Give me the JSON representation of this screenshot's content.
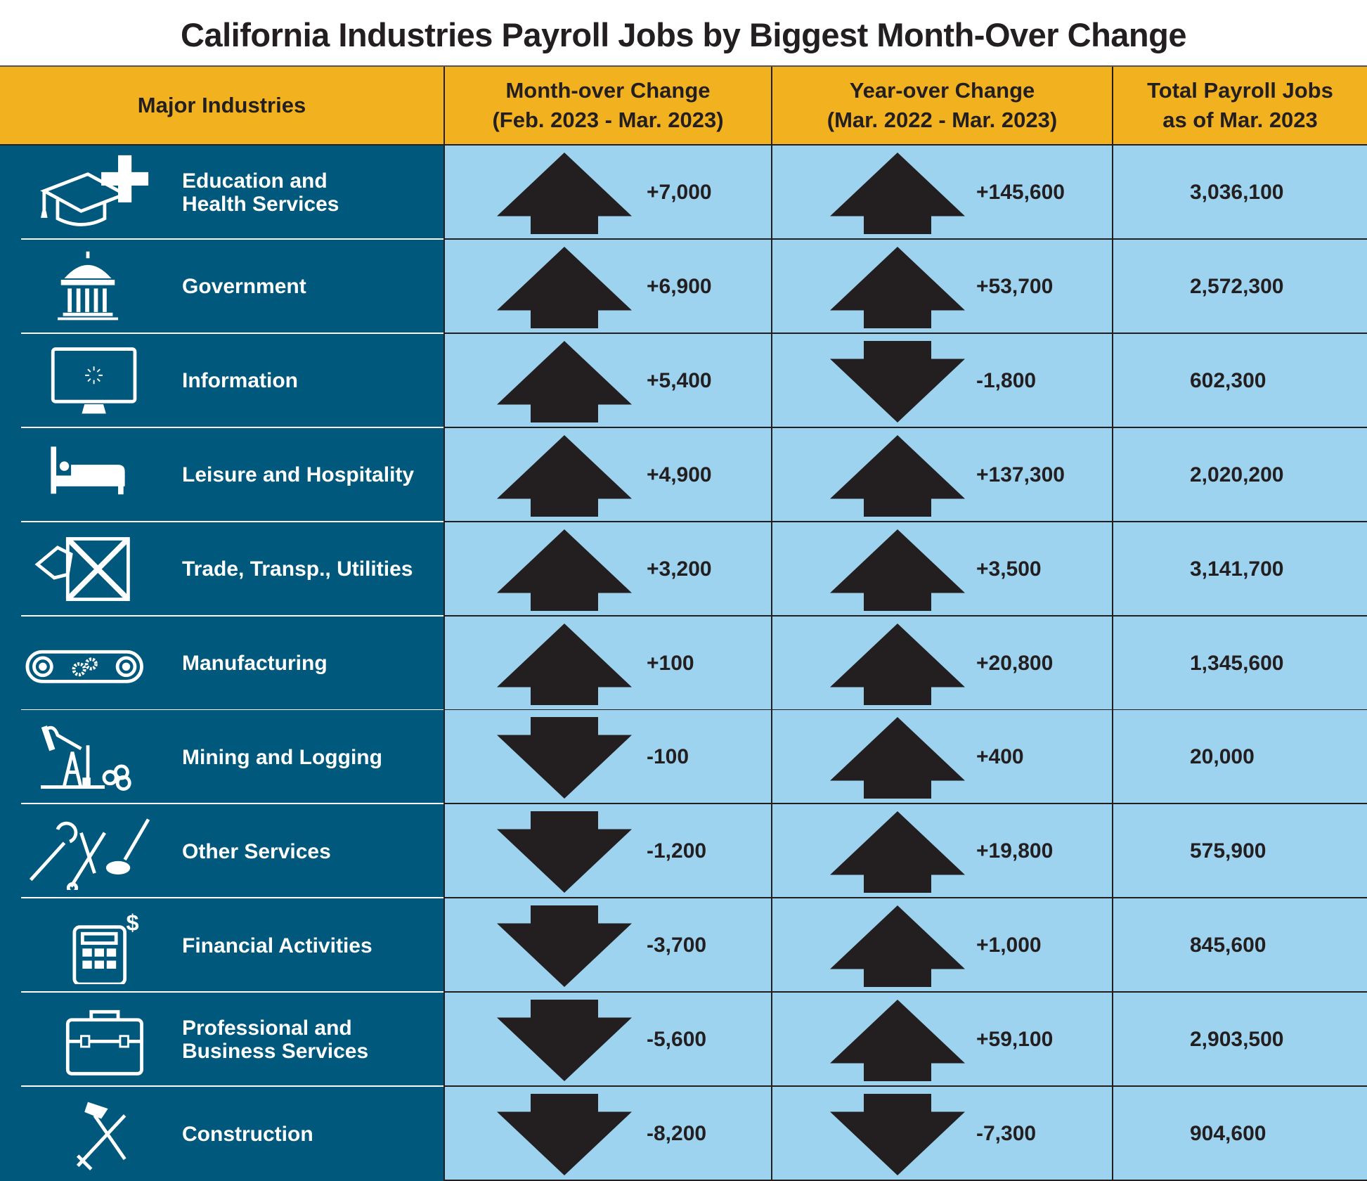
{
  "title": "California Industries Payroll Jobs by Biggest Month-Over Change",
  "headers": {
    "industry": "Major Industries",
    "month_over": "Month-over Change\n(Feb. 2023 - Mar. 2023)",
    "year_over": "Year-over Change\n(Mar. 2022 - Mar. 2023)",
    "total": "Total Payroll Jobs\nas of Mar. 2023"
  },
  "colors": {
    "header_bg": "#f2b11f",
    "industry_bg": "#00587c",
    "cell_bg": "#9dd3ef",
    "arrow": "#231f20"
  },
  "rows": [
    {
      "industry": "Education and\nHealth Services",
      "icon": "graduation-cap-medical-cross-icon",
      "mom": "+7,000",
      "mom_dir": "up",
      "yoy": "+145,600",
      "yoy_dir": "up",
      "total": "3,036,100"
    },
    {
      "industry": "Government",
      "icon": "capitol-building-icon",
      "mom": "+6,900",
      "mom_dir": "up",
      "yoy": "+53,700",
      "yoy_dir": "up",
      "total": "2,572,300"
    },
    {
      "industry": "Information",
      "icon": "computer-monitor-icon",
      "mom": "+5,400",
      "mom_dir": "up",
      "yoy": "-1,800",
      "yoy_dir": "down",
      "total": "602,300"
    },
    {
      "industry": "Leisure and Hospitality",
      "icon": "hotel-bed-icon",
      "mom": "+4,900",
      "mom_dir": "up",
      "yoy": "+137,300",
      "yoy_dir": "up",
      "total": "2,020,200"
    },
    {
      "industry": "Trade, Transp., Utilities",
      "icon": "shipping-crate-tag-icon",
      "mom": "+3,200",
      "mom_dir": "up",
      "yoy": "+3,500",
      "yoy_dir": "up",
      "total": "3,141,700"
    },
    {
      "industry": "Manufacturing",
      "icon": "conveyor-belt-gears-icon",
      "mom": "+100",
      "mom_dir": "up",
      "yoy": "+20,800",
      "yoy_dir": "up",
      "total": "1,345,600"
    },
    {
      "industry": "Mining and Logging",
      "icon": "oil-pump-logs-icon",
      "mom": "-100",
      "mom_dir": "down",
      "yoy": "+400",
      "yoy_dir": "up",
      "total": "20,000"
    },
    {
      "industry": "Other Services",
      "icon": "wrench-scissors-brush-icon",
      "mom": "-1,200",
      "mom_dir": "down",
      "yoy": "+19,800",
      "yoy_dir": "up",
      "total": "575,900"
    },
    {
      "industry": "Financial Activities",
      "icon": "calculator-dollar-icon",
      "mom": "-3,700",
      "mom_dir": "down",
      "yoy": "+1,000",
      "yoy_dir": "up",
      "total": "845,600"
    },
    {
      "industry": "Professional and\nBusiness Services",
      "icon": "briefcase-toolbox-icon",
      "mom": "-5,600",
      "mom_dir": "down",
      "yoy": "+59,100",
      "yoy_dir": "up",
      "total": "2,903,500"
    },
    {
      "industry": "Construction",
      "icon": "hammer-ruler-icon",
      "mom": "-8,200",
      "mom_dir": "down",
      "yoy": "-7,300",
      "yoy_dir": "down",
      "total": "904,600"
    }
  ]
}
